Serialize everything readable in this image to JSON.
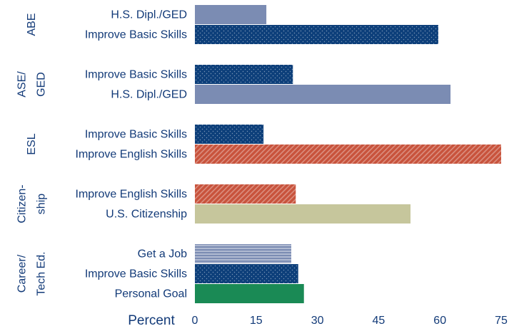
{
  "chart_data": {
    "type": "bar",
    "orientation": "horizontal",
    "xlabel": "Percent",
    "xlim": [
      0,
      75
    ],
    "xticks": [
      0,
      15,
      30,
      45,
      60,
      75
    ],
    "grid": false,
    "groups": [
      {
        "name": [
          "ABE"
        ],
        "categories": [
          "H.S. Dipl./GED",
          "Improve Basic Skills"
        ],
        "values": [
          17.5,
          59.6
        ],
        "colors": [
          "#7b8cb3",
          "#0d3f7a"
        ],
        "patterns": [
          "solid",
          "dots"
        ]
      },
      {
        "name": [
          "ASE/",
          "GED"
        ],
        "categories": [
          "Improve Basic Skills",
          "H.S. Dipl./GED"
        ],
        "values": [
          24,
          62.6
        ],
        "colors": [
          "#0d3f7a",
          "#7b8cb3"
        ],
        "patterns": [
          "dots",
          "solid"
        ]
      },
      {
        "name": [
          "ESL"
        ],
        "categories": [
          "Improve Basic Skills",
          "Improve English Skills"
        ],
        "values": [
          16.8,
          75
        ],
        "colors": [
          "#0d3f7a",
          "#c8533c"
        ],
        "patterns": [
          "dots",
          "diagonal"
        ]
      },
      {
        "name": [
          "Citizen-",
          "ship"
        ],
        "categories": [
          "Improve English Skills",
          "U.S. Citizenship"
        ],
        "values": [
          24.7,
          52.8
        ],
        "colors": [
          "#c8533c",
          "#c6c69c"
        ],
        "patterns": [
          "diagonal",
          "solid"
        ]
      },
      {
        "name": [
          "Career/",
          "Tech Ed."
        ],
        "categories": [
          "Get a Job",
          "Improve Basic Skills",
          "Personal Goal"
        ],
        "values": [
          23.6,
          25.3,
          26.7
        ],
        "colors": [
          "#7b8cb3",
          "#0d3f7a",
          "#1a8a55"
        ],
        "patterns": [
          "hstripes",
          "dots",
          "solid"
        ]
      }
    ]
  }
}
